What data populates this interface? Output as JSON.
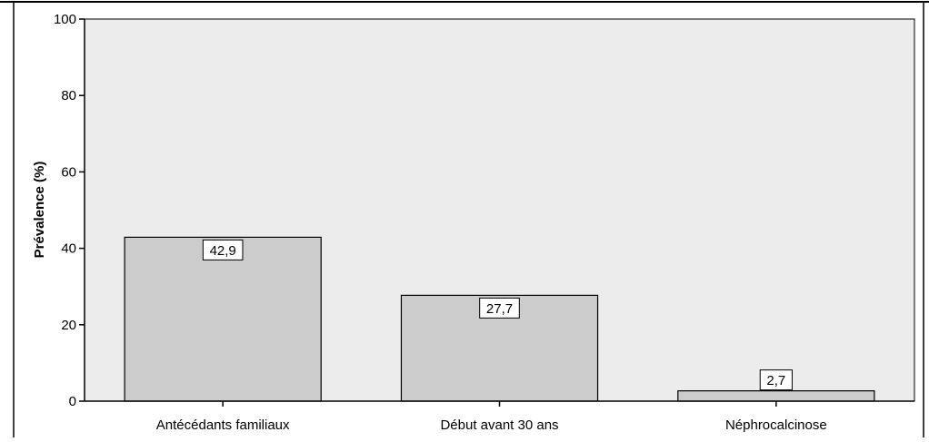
{
  "chart_data": {
    "type": "bar",
    "categories": [
      "Antécédants familiaux",
      "Début avant 30 ans",
      "Néphrocalcinose"
    ],
    "values": [
      42.9,
      27.7,
      2.7
    ],
    "value_labels": [
      "42,9",
      "27,7",
      "2,7"
    ],
    "title": "",
    "xlabel": "",
    "ylabel": "Prévalence (%)",
    "ylim": [
      0,
      100
    ],
    "yticks": [
      0,
      20,
      40,
      60,
      80,
      100
    ],
    "ytick_labels": [
      "0",
      "20",
      "40",
      "60",
      "80",
      "100"
    ],
    "grid": false,
    "legend": "none",
    "colors": {
      "plot_background": "#ececec",
      "bar_fill": "#cccccc",
      "bar_stroke": "#000000",
      "label_box": "#ffffff",
      "axis": "#000000"
    }
  }
}
